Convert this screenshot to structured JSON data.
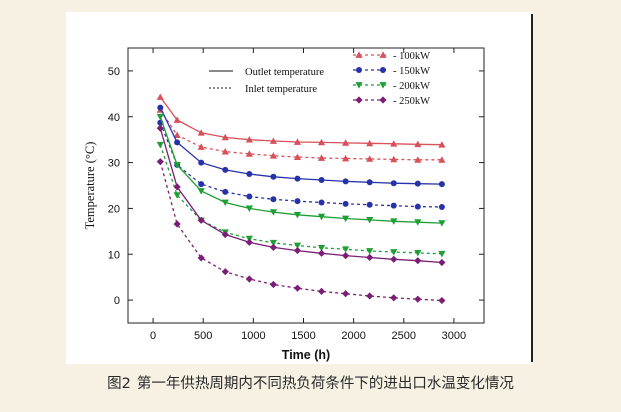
{
  "caption": {
    "figure_label": "图2",
    "text": "第一年供热周期内不同热负荷条件下的进出口水温变化情况"
  },
  "chart_data": {
    "type": "line",
    "xlabel": "Time (h)",
    "ylabel": "Temperature (°C)",
    "xlim": [
      -250,
      3300
    ],
    "ylim": [
      -5,
      55
    ],
    "xticks": [
      0,
      500,
      1000,
      1500,
      2000,
      2500,
      3000
    ],
    "yticks": [
      0,
      10,
      20,
      30,
      40,
      50
    ],
    "grid": false,
    "legend_position": "top-right",
    "line_style_legend": [
      {
        "label": "Outlet temperature",
        "dash": "solid"
      },
      {
        "label": "Inlet temperature",
        "dash": "dotted"
      }
    ],
    "load_legend": [
      {
        "label": "- 100kW",
        "color": "#d8505a",
        "marker": "triangle-up"
      },
      {
        "label": "- 150kW",
        "color": "#2732a8",
        "marker": "circle"
      },
      {
        "label": "- 200kW",
        "color": "#1f9e35",
        "marker": "triangle-down"
      },
      {
        "label": "- 250kW",
        "color": "#7a1f75",
        "marker": "diamond"
      }
    ],
    "series": [
      {
        "load": "100kW",
        "kind": "outlet",
        "color": "#d8505a",
        "marker": "triangle-up",
        "x": [
          72,
          240,
          480,
          720,
          960,
          1200,
          1440,
          1680,
          1920,
          2160,
          2400,
          2640,
          2880
        ],
        "y": [
          44.3,
          39.3,
          36.5,
          35.5,
          35.0,
          34.7,
          34.5,
          34.4,
          34.3,
          34.2,
          34.1,
          34.0,
          33.9
        ]
      },
      {
        "load": "100kW",
        "kind": "inlet",
        "color": "#d8505a",
        "marker": "triangle-up",
        "x": [
          72,
          240,
          480,
          720,
          960,
          1200,
          1440,
          1680,
          1920,
          2160,
          2400,
          2640,
          2880
        ],
        "y": [
          41.5,
          36.0,
          33.4,
          32.4,
          31.9,
          31.5,
          31.2,
          31.0,
          30.9,
          30.8,
          30.7,
          30.6,
          30.6
        ]
      },
      {
        "load": "150kW",
        "kind": "outlet",
        "color": "#2732a8",
        "marker": "circle",
        "x": [
          72,
          240,
          480,
          720,
          960,
          1200,
          1440,
          1680,
          1920,
          2160,
          2400,
          2640,
          2880
        ],
        "y": [
          42.0,
          34.4,
          30.0,
          28.4,
          27.5,
          26.9,
          26.5,
          26.2,
          25.9,
          25.7,
          25.5,
          25.4,
          25.3
        ]
      },
      {
        "load": "150kW",
        "kind": "inlet",
        "color": "#2732a8",
        "marker": "circle",
        "x": [
          72,
          240,
          480,
          720,
          960,
          1200,
          1440,
          1680,
          1920,
          2160,
          2400,
          2640,
          2880
        ],
        "y": [
          38.7,
          29.5,
          25.3,
          23.6,
          22.6,
          22.0,
          21.6,
          21.3,
          21.0,
          20.8,
          20.6,
          20.4,
          20.3
        ]
      },
      {
        "load": "200kW",
        "kind": "outlet",
        "color": "#1f9e35",
        "marker": "triangle-down",
        "x": [
          72,
          240,
          480,
          720,
          960,
          1200,
          1440,
          1680,
          1920,
          2160,
          2400,
          2640,
          2880
        ],
        "y": [
          40.0,
          29.5,
          23.8,
          21.3,
          20.0,
          19.2,
          18.6,
          18.2,
          17.8,
          17.5,
          17.2,
          17.0,
          16.8
        ]
      },
      {
        "load": "200kW",
        "kind": "inlet",
        "color": "#1f9e35",
        "marker": "triangle-down",
        "x": [
          72,
          240,
          480,
          720,
          960,
          1200,
          1440,
          1680,
          1920,
          2160,
          2400,
          2640,
          2880
        ],
        "y": [
          33.9,
          22.9,
          17.4,
          14.8,
          13.4,
          12.5,
          11.9,
          11.4,
          11.1,
          10.7,
          10.5,
          10.3,
          10.1
        ]
      },
      {
        "load": "250kW",
        "kind": "outlet",
        "color": "#7a1f75",
        "marker": "diamond",
        "x": [
          72,
          240,
          480,
          720,
          960,
          1200,
          1440,
          1680,
          1920,
          2160,
          2400,
          2640,
          2880
        ],
        "y": [
          37.5,
          24.7,
          17.4,
          14.3,
          12.6,
          11.5,
          10.8,
          10.2,
          9.7,
          9.3,
          8.9,
          8.6,
          8.2
        ]
      },
      {
        "load": "250kW",
        "kind": "inlet",
        "color": "#7a1f75",
        "marker": "diamond",
        "x": [
          72,
          240,
          480,
          720,
          960,
          1200,
          1440,
          1680,
          1920,
          2160,
          2400,
          2640,
          2880
        ],
        "y": [
          30.2,
          16.6,
          9.2,
          6.2,
          4.6,
          3.4,
          2.6,
          1.9,
          1.4,
          0.9,
          0.5,
          0.2,
          -0.1
        ]
      }
    ]
  }
}
